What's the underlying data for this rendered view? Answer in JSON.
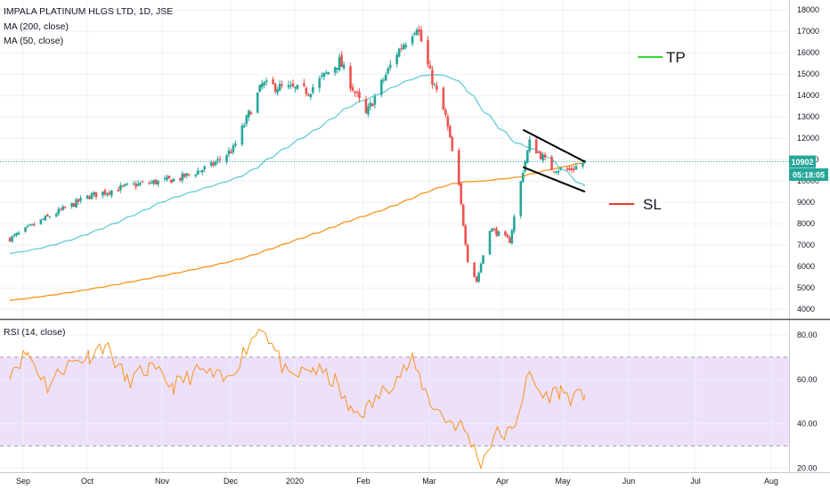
{
  "chart_data": [
    {
      "type": "candlestick",
      "title": "IMPALA PLATINUM HLGS LTD, 1D, JSE",
      "legend": [
        "MA (200, close)",
        "MA (50, close)"
      ],
      "colors": {
        "up": "#26a69a",
        "down": "#ef5350",
        "ma200": "#f7941d",
        "ma50": "#59c9d4",
        "last_price_line": "#26a69a",
        "price_tag": "#26a69a",
        "timer_tag": "#26a69a",
        "tp": "#33dd33",
        "sl": "#e53935",
        "channel": "#000000"
      },
      "ylim": [
        3800,
        18300
      ],
      "yticks": [
        "4000",
        "5000",
        "6000",
        "7000",
        "8000",
        "9000",
        "10000",
        "11000",
        "12000",
        "13000",
        "14000",
        "15000",
        "16000",
        "17000",
        "18000"
      ],
      "x_labels": [
        "Sep",
        "Oct",
        "Nov",
        "Dec",
        "2020",
        "Feb",
        "Mar",
        "Apr",
        "May",
        "Jun",
        "Jul",
        "Aug"
      ],
      "last_price": "10902",
      "countdown": "05:18:05",
      "annotations": {
        "tp_label": "TP",
        "sl_label": "SL"
      },
      "channel": {
        "upper": [
          [
            "Apr 14",
            12400
          ],
          [
            "May 12",
            10900
          ]
        ],
        "lower": [
          [
            "Apr 14",
            10650
          ],
          [
            "May 12",
            9500
          ]
        ]
      },
      "ohlc_keypoints": [
        {
          "date": "Aug 26",
          "close": 7300
        },
        {
          "date": "Sep 10",
          "close": 8200
        },
        {
          "date": "Oct 1",
          "close": 9300
        },
        {
          "date": "Oct 20",
          "close": 9800
        },
        {
          "date": "Nov 10",
          "close": 10100
        },
        {
          "date": "Nov 25",
          "close": 10700
        },
        {
          "date": "Dec 5",
          "close": 11500
        },
        {
          "date": "Dec 18",
          "close": 14500
        },
        {
          "date": "Jan 8",
          "close": 14200
        },
        {
          "date": "Jan 22",
          "close": 15600
        },
        {
          "date": "Feb 3",
          "close": 13100
        },
        {
          "date": "Feb 17",
          "close": 16000
        },
        {
          "date": "Feb 26",
          "close": 17300
        },
        {
          "date": "Mar 3",
          "close": 15000
        },
        {
          "date": "Mar 10",
          "close": 13000
        },
        {
          "date": "Mar 16",
          "close": 9700
        },
        {
          "date": "Mar 20",
          "close": 6300
        },
        {
          "date": "Mar 24",
          "close": 5300
        },
        {
          "date": "Mar 30",
          "close": 7800
        },
        {
          "date": "Apr 8",
          "close": 7200
        },
        {
          "date": "Apr 14",
          "close": 10500
        },
        {
          "date": "Apr 17",
          "close": 11800
        },
        {
          "date": "Apr 27",
          "close": 10600
        },
        {
          "date": "May 5",
          "close": 10500
        },
        {
          "date": "May 12",
          "close": 10900
        }
      ]
    },
    {
      "type": "line",
      "title": "RSI (14, close)",
      "ylim": [
        19,
        84
      ],
      "yticks": [
        "20.00",
        "40.00",
        "60.00",
        "80.00"
      ],
      "band": [
        30,
        70
      ],
      "colors": {
        "line": "#f7941d",
        "band": "#ede0fb"
      },
      "keypoints": [
        {
          "date": "Aug 26",
          "value": 64
        },
        {
          "date": "Sep 3",
          "value": 72
        },
        {
          "date": "Sep 12",
          "value": 57
        },
        {
          "date": "Sep 20",
          "value": 66
        },
        {
          "date": "Oct 1",
          "value": 71
        },
        {
          "date": "Oct 8",
          "value": 76
        },
        {
          "date": "Oct 18",
          "value": 59
        },
        {
          "date": "Oct 28",
          "value": 65
        },
        {
          "date": "Nov 8",
          "value": 57
        },
        {
          "date": "Nov 20",
          "value": 64
        },
        {
          "date": "Dec 2",
          "value": 59
        },
        {
          "date": "Dec 12",
          "value": 76
        },
        {
          "date": "Dec 18",
          "value": 85
        },
        {
          "date": "Dec 30",
          "value": 60
        },
        {
          "date": "Jan 10",
          "value": 65
        },
        {
          "date": "Jan 20",
          "value": 59
        },
        {
          "date": "Jan 27",
          "value": 45
        },
        {
          "date": "Feb 3",
          "value": 46
        },
        {
          "date": "Feb 14",
          "value": 58
        },
        {
          "date": "Feb 24",
          "value": 68
        },
        {
          "date": "Mar 3",
          "value": 50
        },
        {
          "date": "Mar 10",
          "value": 42
        },
        {
          "date": "Mar 17",
          "value": 39
        },
        {
          "date": "Mar 20",
          "value": 35
        },
        {
          "date": "Mar 26",
          "value": 22
        },
        {
          "date": "Apr 1",
          "value": 35
        },
        {
          "date": "Apr 9",
          "value": 36
        },
        {
          "date": "Apr 14",
          "value": 53
        },
        {
          "date": "Apr 17",
          "value": 62
        },
        {
          "date": "Apr 23",
          "value": 52
        },
        {
          "date": "May 1",
          "value": 55
        },
        {
          "date": "May 7",
          "value": 51
        },
        {
          "date": "May 12",
          "value": 53
        }
      ]
    }
  ]
}
